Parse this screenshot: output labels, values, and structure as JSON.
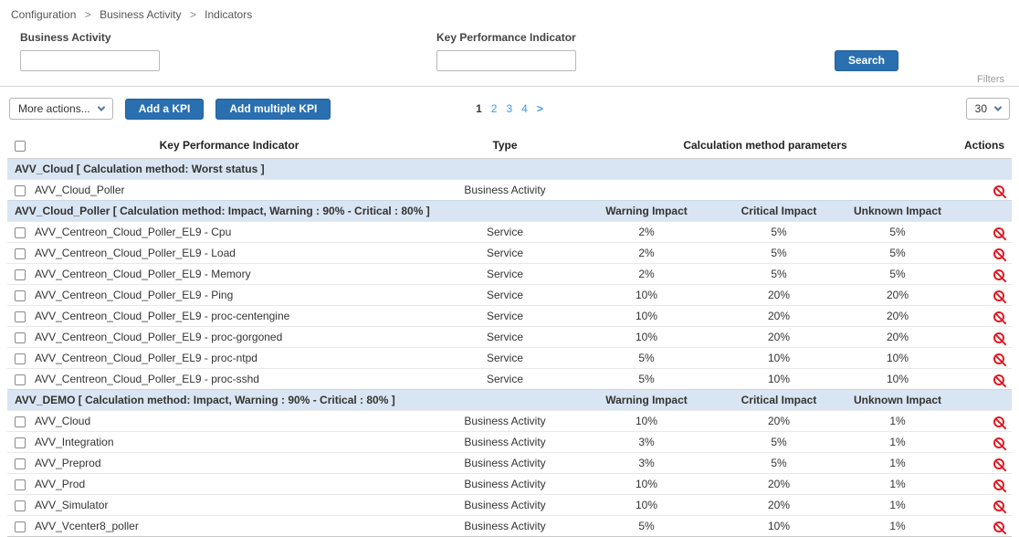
{
  "colors": {
    "accent_blue": "#2a6fb0",
    "link_blue": "#3d9be9",
    "group_header_bg": "#d9e5f2",
    "ban_red": "#e01b24"
  },
  "breadcrumb": {
    "separator": ">",
    "items": [
      "Configuration",
      "Business Activity",
      "Indicators"
    ]
  },
  "filters": {
    "business_activity_label": "Business Activity",
    "business_activity_value": "",
    "kpi_label": "Key Performance Indicator",
    "kpi_value": "",
    "search_button": "Search",
    "filters_label": "Filters"
  },
  "toolbar": {
    "more_actions_label": "More actions...",
    "add_kpi_label": "Add a KPI",
    "add_multiple_kpi_label": "Add multiple KPI",
    "page_size_value": "30",
    "pagination": {
      "current": "1",
      "pages": [
        "2",
        "3",
        "4"
      ],
      "next": ">"
    }
  },
  "table": {
    "headers": {
      "kpi": "Key Performance Indicator",
      "type": "Type",
      "calc": "Calculation method parameters",
      "actions": "Actions"
    },
    "groups": [
      {
        "title": "AVV_Cloud [ Calculation method: Worst status ]",
        "rows": [
          {
            "name": "AVV_Cloud_Poller",
            "type": "Business Activity",
            "warning": "",
            "critical": "",
            "unknown": ""
          }
        ]
      },
      {
        "title": "AVV_Cloud_Poller [ Calculation method: Impact, Warning : 90% - Critical : 80% ]",
        "warning_header": "Warning Impact",
        "critical_header": "Critical Impact",
        "unknown_header": "Unknown Impact",
        "rows": [
          {
            "name": "AVV_Centreon_Cloud_Poller_EL9 - Cpu",
            "type": "Service",
            "warning": "2%",
            "critical": "5%",
            "unknown": "5%"
          },
          {
            "name": "AVV_Centreon_Cloud_Poller_EL9 - Load",
            "type": "Service",
            "warning": "2%",
            "critical": "5%",
            "unknown": "5%"
          },
          {
            "name": "AVV_Centreon_Cloud_Poller_EL9 - Memory",
            "type": "Service",
            "warning": "2%",
            "critical": "5%",
            "unknown": "5%"
          },
          {
            "name": "AVV_Centreon_Cloud_Poller_EL9 - Ping",
            "type": "Service",
            "warning": "10%",
            "critical": "20%",
            "unknown": "20%"
          },
          {
            "name": "AVV_Centreon_Cloud_Poller_EL9 - proc-centengine",
            "type": "Service",
            "warning": "10%",
            "critical": "20%",
            "unknown": "20%"
          },
          {
            "name": "AVV_Centreon_Cloud_Poller_EL9 - proc-gorgoned",
            "type": "Service",
            "warning": "10%",
            "critical": "20%",
            "unknown": "20%"
          },
          {
            "name": "AVV_Centreon_Cloud_Poller_EL9 - proc-ntpd",
            "type": "Service",
            "warning": "5%",
            "critical": "10%",
            "unknown": "10%"
          },
          {
            "name": "AVV_Centreon_Cloud_Poller_EL9 - proc-sshd",
            "type": "Service",
            "warning": "5%",
            "critical": "10%",
            "unknown": "10%"
          }
        ]
      },
      {
        "title": "AVV_DEMO [ Calculation method: Impact, Warning : 90% - Critical : 80% ]",
        "warning_header": "Warning Impact",
        "critical_header": "Critical Impact",
        "unknown_header": "Unknown Impact",
        "rows": [
          {
            "name": "AVV_Cloud",
            "type": "Business Activity",
            "warning": "10%",
            "critical": "20%",
            "unknown": "1%"
          },
          {
            "name": "AVV_Integration",
            "type": "Business Activity",
            "warning": "3%",
            "critical": "5%",
            "unknown": "1%"
          },
          {
            "name": "AVV_Preprod",
            "type": "Business Activity",
            "warning": "3%",
            "critical": "5%",
            "unknown": "1%"
          },
          {
            "name": "AVV_Prod",
            "type": "Business Activity",
            "warning": "10%",
            "critical": "20%",
            "unknown": "1%"
          },
          {
            "name": "AVV_Simulator",
            "type": "Business Activity",
            "warning": "10%",
            "critical": "20%",
            "unknown": "1%"
          },
          {
            "name": "AVV_Vcenter8_poller",
            "type": "Business Activity",
            "warning": "5%",
            "critical": "10%",
            "unknown": "1%"
          }
        ]
      }
    ]
  }
}
